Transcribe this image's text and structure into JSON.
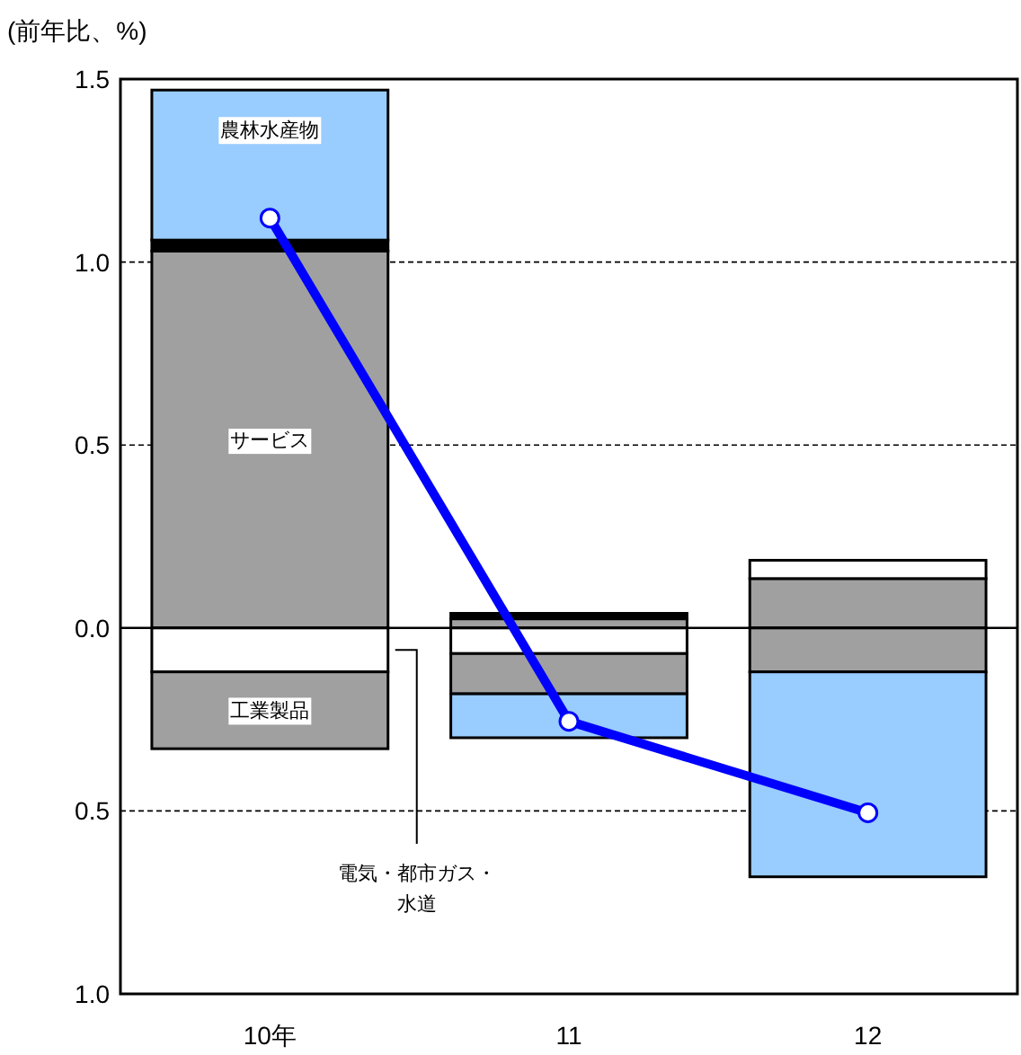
{
  "chart_data": {
    "type": "bar",
    "stacked": true,
    "ylabel": "(前年比、%)",
    "categories": [
      "10年",
      "11",
      "12"
    ],
    "series": [
      {
        "name": "サービス",
        "color": "#a0a0a0",
        "values": [
          1.03,
          0.025,
          0.135
        ]
      },
      {
        "name": "電気・都市ガス・水道",
        "color": "#ffffff",
        "values": [
          -0.12,
          -0.07,
          0.05
        ]
      },
      {
        "name": "工業製品",
        "color": "#a0a0a0",
        "values": [
          -0.21,
          -0.11,
          -0.12
        ]
      },
      {
        "color": "#000000",
        "values": [
          0.03,
          0.015,
          null
        ]
      },
      {
        "name": "農林水産物",
        "color": "#99ccff",
        "values": [
          0.41,
          -0.12,
          -0.56
        ]
      },
      {
        "type": "line",
        "color": "#0000ff",
        "marker": "circle",
        "values": [
          1.12,
          -0.255,
          -0.505
        ]
      }
    ],
    "ylim": [
      -1,
      1.5
    ],
    "yticks": [
      1.5,
      {
        "value": 1,
        "label": "1.0"
      },
      0.5,
      {
        "value": 0,
        "label": "0.0"
      },
      {
        "value": -0.5,
        "label": "0.5"
      },
      {
        "value": -1,
        "label": "1.0"
      }
    ],
    "grid": "y",
    "ref_lines": [
      {
        "axis": "y",
        "value": 0,
        "color": "#000000"
      }
    ]
  }
}
